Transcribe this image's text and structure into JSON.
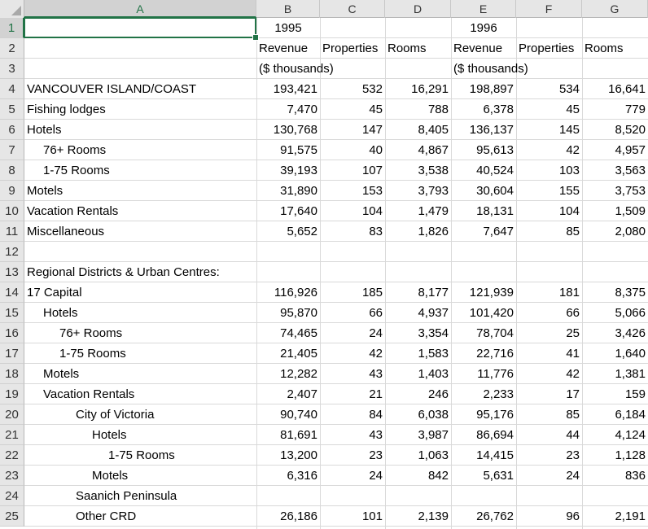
{
  "columns": [
    "A",
    "B",
    "C",
    "D",
    "E",
    "F",
    "G"
  ],
  "rows": [
    {
      "n": "1",
      "a": "",
      "b": "1995",
      "c": "",
      "d": "",
      "e": "1996",
      "f": "",
      "g": ""
    },
    {
      "n": "2",
      "a": "",
      "b": "Revenue",
      "c": "Properties",
      "d": "Rooms",
      "e": "Revenue",
      "f": "Properties",
      "g": "Rooms"
    },
    {
      "n": "3",
      "a": "",
      "b": "($ thousands)",
      "c": "",
      "d": "",
      "e": "($ thousands)",
      "f": "",
      "g": ""
    },
    {
      "n": "4",
      "a": "VANCOUVER ISLAND/COAST",
      "b": "193,421",
      "c": "532",
      "d": "16,291",
      "e": "198,897",
      "f": "534",
      "g": "16,641"
    },
    {
      "n": "5",
      "a": "Fishing lodges",
      "b": "7,470",
      "c": "45",
      "d": "788",
      "e": "6,378",
      "f": "45",
      "g": "779"
    },
    {
      "n": "6",
      "a": "Hotels",
      "b": "130,768",
      "c": "147",
      "d": "8,405",
      "e": "136,137",
      "f": "145",
      "g": "8,520"
    },
    {
      "n": "7",
      "a": "76+ Rooms",
      "b": "91,575",
      "c": "40",
      "d": "4,867",
      "e": "95,613",
      "f": "42",
      "g": "4,957"
    },
    {
      "n": "8",
      "a": "1-75 Rooms",
      "b": "39,193",
      "c": "107",
      "d": "3,538",
      "e": "40,524",
      "f": "103",
      "g": "3,563"
    },
    {
      "n": "9",
      "a": "Motels",
      "b": "31,890",
      "c": "153",
      "d": "3,793",
      "e": "30,604",
      "f": "155",
      "g": "3,753"
    },
    {
      "n": "10",
      "a": "Vacation Rentals",
      "b": "17,640",
      "c": "104",
      "d": "1,479",
      "e": "18,131",
      "f": "104",
      "g": "1,509"
    },
    {
      "n": "11",
      "a": "Miscellaneous",
      "b": "5,652",
      "c": "83",
      "d": "1,826",
      "e": "7,647",
      "f": "85",
      "g": "2,080"
    },
    {
      "n": "12",
      "a": "",
      "b": "",
      "c": "",
      "d": "",
      "e": "",
      "f": "",
      "g": ""
    },
    {
      "n": "13",
      "a": "Regional Districts & Urban Centres:",
      "b": "",
      "c": "",
      "d": "",
      "e": "",
      "f": "",
      "g": ""
    },
    {
      "n": "14",
      "a": "17  Capital",
      "b": "116,926",
      "c": "185",
      "d": "8,177",
      "e": "121,939",
      "f": "181",
      "g": "8,375"
    },
    {
      "n": "15",
      "a": "Hotels",
      "b": "95,870",
      "c": "66",
      "d": "4,937",
      "e": "101,420",
      "f": "66",
      "g": "5,066"
    },
    {
      "n": "16",
      "a": "76+ Rooms",
      "b": "74,465",
      "c": "24",
      "d": "3,354",
      "e": "78,704",
      "f": "25",
      "g": "3,426"
    },
    {
      "n": "17",
      "a": "1-75 Rooms",
      "b": "21,405",
      "c": "42",
      "d": "1,583",
      "e": "22,716",
      "f": "41",
      "g": "1,640"
    },
    {
      "n": "18",
      "a": "Motels",
      "b": "12,282",
      "c": "43",
      "d": "1,403",
      "e": "11,776",
      "f": "42",
      "g": "1,381"
    },
    {
      "n": "19",
      "a": "Vacation Rentals",
      "b": "2,407",
      "c": "21",
      "d": "246",
      "e": "2,233",
      "f": "17",
      "g": "159"
    },
    {
      "n": "20",
      "a": "City of Victoria",
      "b": "90,740",
      "c": "84",
      "d": "6,038",
      "e": "95,176",
      "f": "85",
      "g": "6,184"
    },
    {
      "n": "21",
      "a": "Hotels",
      "b": "81,691",
      "c": "43",
      "d": "3,987",
      "e": "86,694",
      "f": "44",
      "g": "4,124"
    },
    {
      "n": "22",
      "a": "1-75 Rooms",
      "b": "13,200",
      "c": "23",
      "d": "1,063",
      "e": "14,415",
      "f": "23",
      "g": "1,128"
    },
    {
      "n": "23",
      "a": "Motels",
      "b": "6,316",
      "c": "24",
      "d": "842",
      "e": "5,631",
      "f": "24",
      "g": "836"
    },
    {
      "n": "24",
      "a": "Saanich Peninsula",
      "b": "",
      "c": "",
      "d": "",
      "e": "",
      "f": "",
      "g": ""
    },
    {
      "n": "25",
      "a": "Other CRD",
      "b": "26,186",
      "c": "101",
      "d": "2,139",
      "e": "26,762",
      "f": "96",
      "g": "2,191"
    }
  ],
  "selected_cell": "A1",
  "colors": {
    "accent": "#217346",
    "header_bg": "#e6e6e6",
    "grid": "#d9d9d9"
  }
}
